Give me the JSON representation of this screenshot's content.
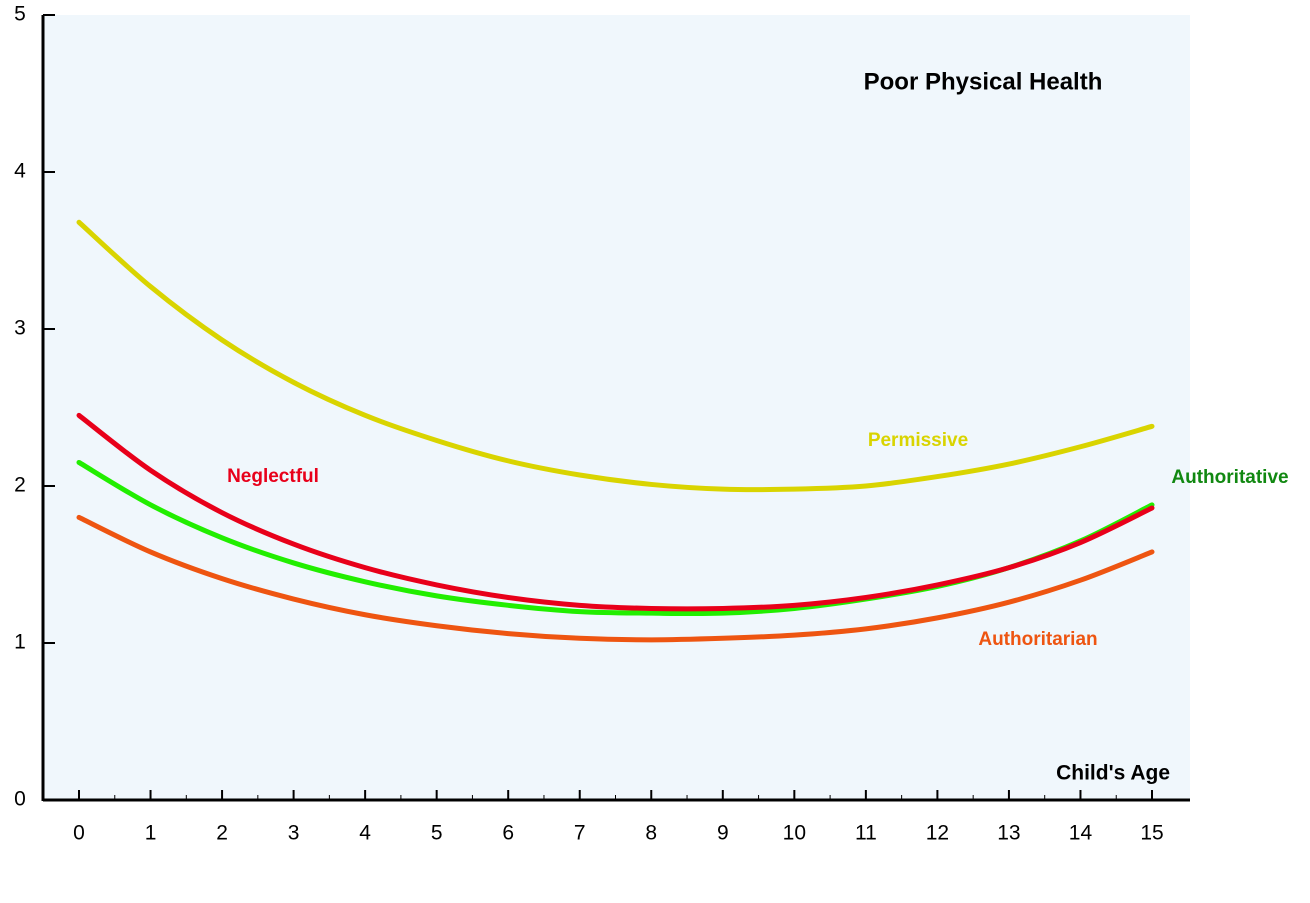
{
  "chart_data": {
    "type": "line",
    "title": "Poor Physical Health",
    "x_label": "Child's Age",
    "x": [
      0,
      1,
      2,
      3,
      4,
      5,
      6,
      7,
      8,
      9,
      10,
      11,
      12,
      13,
      14,
      15
    ],
    "xlim": [
      0,
      15
    ],
    "xticks": [
      0,
      1,
      2,
      3,
      4,
      5,
      6,
      7,
      8,
      9,
      10,
      11,
      12,
      13,
      14,
      15
    ],
    "ylim": [
      0,
      5
    ],
    "yticks": [
      0,
      1,
      2,
      3,
      4,
      5
    ],
    "series": [
      {
        "name": "Permissive",
        "color": "#d9d400",
        "label_color": "#d9d400",
        "values": [
          3.68,
          3.27,
          2.93,
          2.66,
          2.45,
          2.29,
          2.16,
          2.07,
          2.01,
          1.98,
          1.98,
          2.0,
          2.06,
          2.14,
          2.25,
          2.38
        ]
      },
      {
        "name": "Authoritative",
        "color": "#22ee00",
        "label_color": "#118811",
        "values": [
          2.15,
          1.88,
          1.67,
          1.51,
          1.39,
          1.3,
          1.24,
          1.2,
          1.19,
          1.19,
          1.22,
          1.28,
          1.36,
          1.48,
          1.65,
          1.88
        ]
      },
      {
        "name": "Neglectful",
        "color": "#e8001a",
        "label_color": "#e8001a",
        "values": [
          2.45,
          2.1,
          1.83,
          1.63,
          1.48,
          1.37,
          1.29,
          1.24,
          1.22,
          1.22,
          1.24,
          1.29,
          1.37,
          1.48,
          1.64,
          1.86
        ]
      },
      {
        "name": "Authoritarian",
        "color": "#ee5511",
        "label_color": "#ee5511",
        "values": [
          1.8,
          1.58,
          1.41,
          1.28,
          1.18,
          1.11,
          1.06,
          1.03,
          1.02,
          1.03,
          1.05,
          1.09,
          1.16,
          1.26,
          1.4,
          1.58
        ]
      }
    ]
  }
}
